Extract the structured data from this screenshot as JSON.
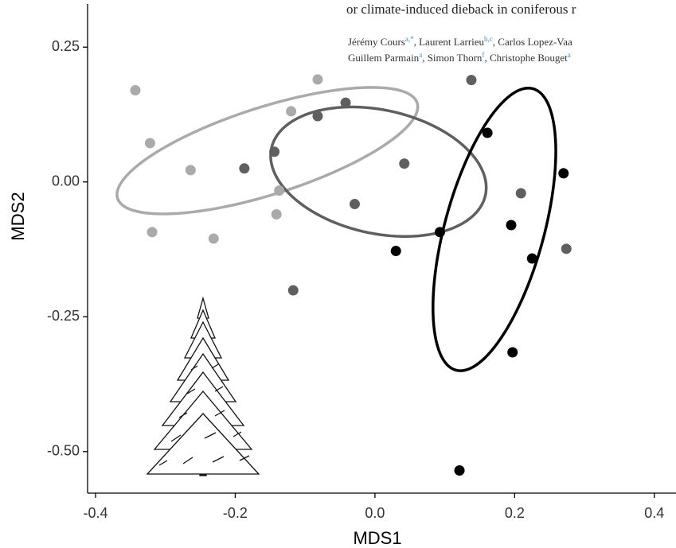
{
  "chart_data": {
    "type": "scatter",
    "xlabel": "MDS1",
    "ylabel": "MDS2",
    "xlim": [
      -0.4114,
      0.431
    ],
    "ylim": [
      -0.577,
      0.33
    ],
    "xticks": [
      -0.4,
      -0.2,
      {
        "value": 0,
        "label": "0.0"
      },
      0.2,
      0.4
    ],
    "yticks": [
      0.25,
      {
        "value": 0,
        "label": "0.00"
      },
      -0.25,
      {
        "value": -0.5,
        "label": "-0.50"
      }
    ],
    "grid": false,
    "series": [
      {
        "color": "#aaaaaa",
        "x": [
          -0.343,
          -0.322,
          -0.264,
          -0.319,
          -0.231,
          -0.141,
          -0.137,
          -0.12,
          -0.082
        ],
        "values": [
          0.17,
          0.072,
          0.022,
          -0.093,
          -0.105,
          -0.06,
          -0.016,
          0.131,
          0.19
        ],
        "ellipse": {
          "center": [
            -0.154,
            0.058
          ],
          "axis1": [
            0.2145,
            0.0885
          ],
          "axis2": [
            0.019,
            -0.077
          ]
        }
      },
      {
        "color": "#5f5f5f",
        "x": [
          -0.187,
          -0.144,
          -0.082,
          -0.042,
          -0.029,
          0.042,
          0.138,
          0.209,
          0.274,
          -0.117
        ],
        "values": [
          0.025,
          0.056,
          0.122,
          0.147,
          -0.041,
          0.034,
          0.189,
          -0.021,
          -0.124,
          -0.201
        ],
        "ellipse": {
          "center": [
            0.005,
            0.019
          ],
          "axis1": [
            0.154,
            -0.022
          ],
          "axis2": [
            -0.01,
            0.118
          ]
        }
      },
      {
        "color": "#000000",
        "x": [
          0.03,
          0.093,
          0.161,
          0.195,
          0.225,
          0.27,
          0.197,
          0.121
        ],
        "values": [
          -0.128,
          -0.093,
          0.091,
          -0.08,
          -0.142,
          0.016,
          -0.316,
          -0.535
        ],
        "ellipse": {
          "center": [
            0.171,
            -0.088
          ],
          "axis1": [
            0.055,
            0.261
          ],
          "axis2": [
            0.0686,
            -0.0236
          ]
        }
      }
    ]
  },
  "overlay": {
    "headline": "or climate-induced dieback in coniferous r",
    "authors": [
      [
        {
          "text": "Jérémy Cours",
          "sup": "a,*"
        },
        {
          "text": ", Laurent Larrieu",
          "sup": "b,c"
        },
        {
          "text": ", Carlos Lopez-Vaa"
        }
      ],
      [
        {
          "text": "Guillem Parmain",
          "sup": "a"
        },
        {
          "text": ", Simon Thorn",
          "sup": "f"
        },
        {
          "text": ", Christophe Bouget",
          "sup": "a"
        }
      ]
    ]
  }
}
